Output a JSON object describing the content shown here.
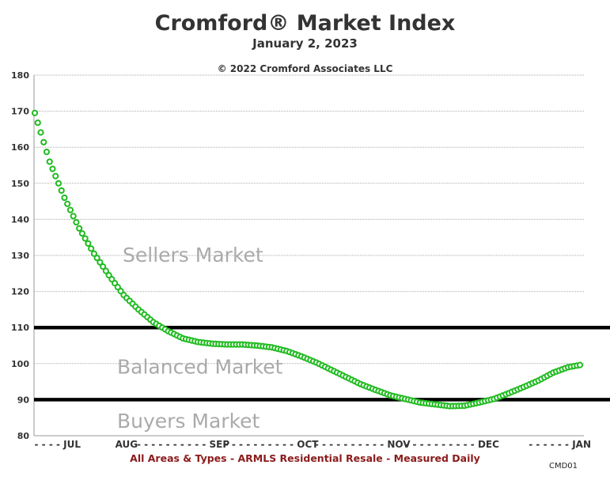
{
  "chart_data": {
    "type": "line",
    "title": "Cromford® Market Index",
    "subtitle": "January 2, 2023",
    "copyright": "© 2022 Cromford Associates LLC",
    "footer": "All Areas & Types - ARMLS Residential Resale - Measured Daily",
    "code": "CMD01",
    "ylim": [
      80,
      180
    ],
    "yticks": [
      80,
      90,
      100,
      110,
      120,
      130,
      140,
      150,
      160,
      170,
      180
    ],
    "xlim": [
      0,
      186
    ],
    "xtick_labels": [
      {
        "label": "- - - - JUL",
        "day": 0
      },
      {
        "label": "AUG",
        "day": 31
      },
      {
        "label": "- - - - - - - - - - SEP",
        "day": 62
      },
      {
        "label": "- - - - - - - - - - OCT",
        "day": 92
      },
      {
        "label": "- - - - - - - - - - NOV",
        "day": 123
      },
      {
        "label": "- - - - - - - - - - DEC",
        "day": 153
      },
      {
        "label": "- - - - - - JAN",
        "day": 184
      }
    ],
    "thresholds": [
      110,
      90
    ],
    "regions": [
      {
        "label": "Sellers Market",
        "value": 130
      },
      {
        "label": "Balanced Market",
        "value": 99
      },
      {
        "label": "Buyers Market",
        "value": 84
      }
    ],
    "series": [
      {
        "color": "#22bb22",
        "keypoints_day": [
          0,
          5,
          10,
          15,
          20,
          25,
          30,
          35,
          40,
          45,
          50,
          55,
          60,
          65,
          70,
          75,
          80,
          85,
          90,
          95,
          100,
          105,
          110,
          115,
          120,
          125,
          130,
          135,
          140,
          145,
          150,
          155,
          160,
          165,
          170,
          175,
          180,
          184
        ],
        "keypoints_value": [
          169.5,
          156,
          146,
          137.5,
          130.5,
          124.5,
          119,
          115,
          111.5,
          109,
          107,
          106,
          105.5,
          105.3,
          105.3,
          105,
          104.5,
          103.5,
          102,
          100.3,
          98.3,
          96.3,
          94.3,
          92.7,
          91.2,
          90.2,
          89.2,
          88.7,
          88.2,
          88.3,
          89.2,
          90.2,
          91.8,
          93.5,
          95.3,
          97.5,
          99,
          99.6
        ]
      }
    ]
  }
}
